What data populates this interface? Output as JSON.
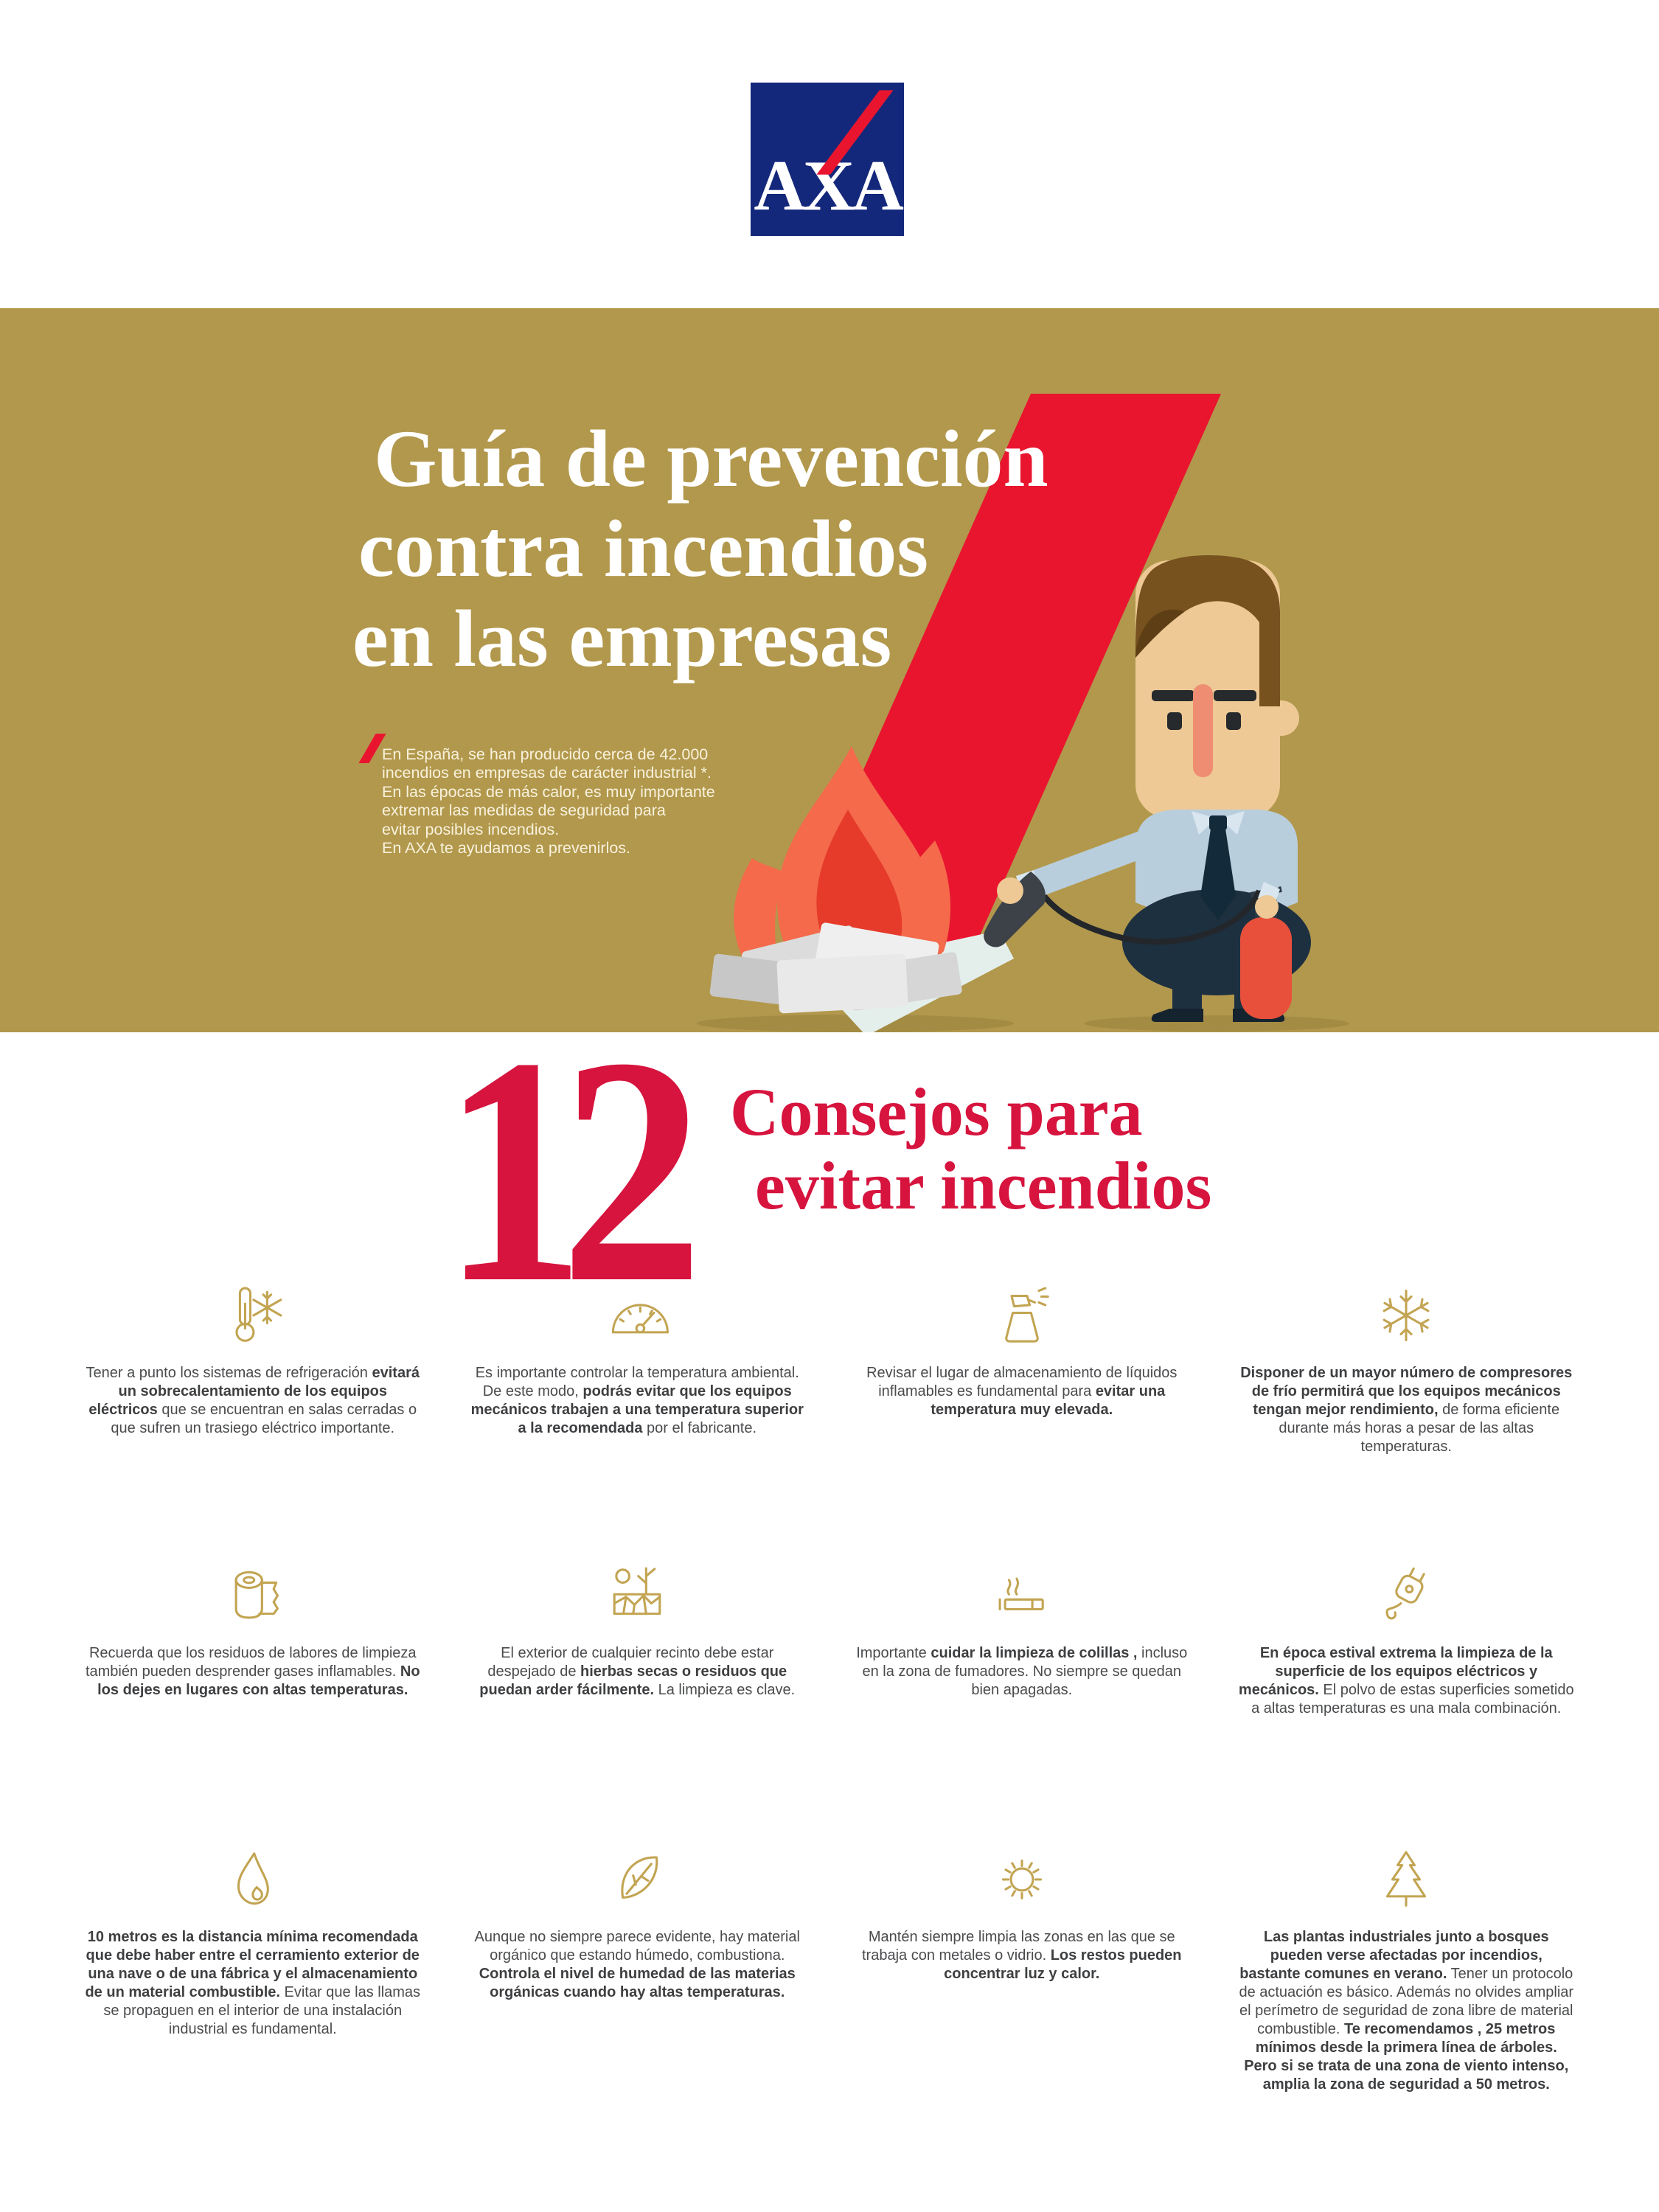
{
  "header": {
    "logo": {
      "text": "AXA",
      "bg_color": "#14287b",
      "slash_color": "#e9152f",
      "letter_color": "#ffffff"
    }
  },
  "banner": {
    "bg_color": "#b2984c",
    "slash_color": "#e9152f",
    "title_color": "#ffffff",
    "title_lines": [
      "Guía de prevención",
      "contra incendios",
      "en las empresas"
    ],
    "intro_color": "#f8f2dd",
    "intro_lines": [
      "En España, se han producido cerca de 42.000",
      "incendios en empresas de carácter industrial *.",
      "En las épocas de más calor, es muy importante",
      "extremar las medidas de seguridad para",
      "evitar posibles incendios.",
      "En AXA te ayudamos a prevenirlos."
    ],
    "illustration": "man-extinguishing-fire-illustration"
  },
  "section": {
    "number": "12",
    "heading_lines": [
      "Consejos para",
      "evitar incendios"
    ],
    "accent_color": "#d6143e"
  },
  "tips": [
    {
      "icon": "thermometer-snowflake-icon",
      "text": "Tener a punto los sistemas de refrigeración **evitará un sobrecalentamiento de los equipos eléctricos** que se encuentran en salas cerradas o que sufren un trasiego eléctrico importante."
    },
    {
      "icon": "gauge-icon",
      "text": "Es importante controlar la temperatura ambiental. De este modo, **podrás evitar que los equipos mecánicos trabajen a una temperatura superior a la recomendada** por el fabricante."
    },
    {
      "icon": "spray-bottle-icon",
      "text": "Revisar el lugar de almacenamiento de líquidos inflamables es fundamental para **evitar una temperatura muy elevada.**"
    },
    {
      "icon": "snowflake-icon",
      "text": "**Disponer de un mayor número de compresores de frío permitirá  que los equipos mecánicos tengan mejor rendimiento,**  de forma eficiente durante más horas a pesar de las altas temperaturas."
    },
    {
      "icon": "paper-roll-icon",
      "text": "Recuerda que los residuos de labores de limpieza también pueden desprender gases inflamables. **No los dejes en lugares con altas temperaturas.**"
    },
    {
      "icon": "dry-ground-icon",
      "text": "El exterior de cualquier recinto debe estar despejado de **hierbas secas o residuos que puedan arder fácilmente.** La limpieza es clave."
    },
    {
      "icon": "cigarette-icon",
      "text": "Importante **cuidar la limpieza de colillas ,** incluso en la zona de fumadores. No siempre se quedan bien apagadas."
    },
    {
      "icon": "plug-icon",
      "text": "**En época estival extrema la limpieza de la superficie de los equipos eléctricos y mecánicos.** El polvo de estas superficies sometido a altas temperaturas es una mala combinación."
    },
    {
      "icon": "flame-icon",
      "text": "**10 metros es la distancia mínima recomendada que debe  haber entre el cerramiento exterior de una nave o de una fábrica y el almacenamiento de un material combustible.** Evitar que las llamas se propaguen en el interior de una instalación industrial es fundamental."
    },
    {
      "icon": "leaf-icon",
      "text": "Aunque no siempre parece evidente, hay material orgánico que estando húmedo, combustiona.  **Controla el nivel de humedad de las materias orgánicas cuando hay altas temperaturas.**"
    },
    {
      "icon": "sun-icon",
      "text": "Mantén siempre limpia las zonas en las que se trabaja con metales o vidrio. **Los restos pueden concentrar luz y calor.**"
    },
    {
      "icon": "pine-tree-icon",
      "text": "**Las plantas industriales junto a bosques pueden verse afectadas por  incendios, bastante comunes en verano.** Tener un protocolo de actuación es básico. Además no olvides ampliar el perímetro de seguridad de zona libre de material combustible. **Te recomendamos , 25 metros mínimos desde la primera línea de árboles.   Pero si se trata de una zona de viento intenso, amplia la zona de seguridad a 50 metros.**"
    }
  ]
}
